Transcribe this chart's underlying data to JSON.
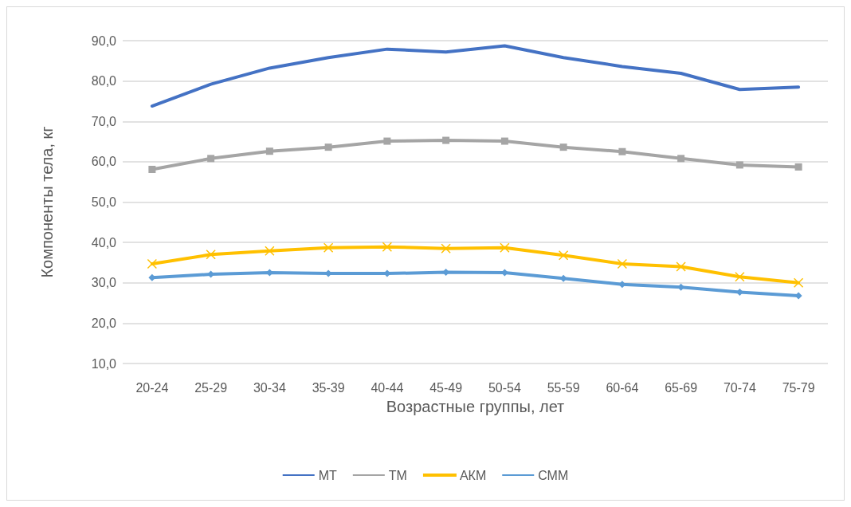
{
  "chart_data": {
    "type": "line",
    "xlabel": "Возрастные группы, лет",
    "ylabel": "Компоненты тела, кг",
    "categories": [
      "20-24",
      "25-29",
      "30-34",
      "35-39",
      "40-44",
      "45-49",
      "50-54",
      "55-59",
      "60-64",
      "65-69",
      "70-74",
      "75-79"
    ],
    "series": [
      {
        "name": "МТ",
        "color": "#4472c4",
        "marker": "none",
        "values": [
          73.8,
          79.2,
          83.2,
          85.8,
          87.9,
          87.2,
          88.7,
          85.8,
          83.6,
          81.9,
          77.9,
          78.5
        ]
      },
      {
        "name": "ТМ",
        "color": "#a5a5a5",
        "marker": "square",
        "values": [
          58.1,
          60.8,
          62.6,
          63.6,
          65.1,
          65.3,
          65.1,
          63.6,
          62.5,
          60.8,
          59.2,
          58.7
        ]
      },
      {
        "name": "АКМ",
        "color": "#ffc000",
        "marker": "cross",
        "values": [
          34.7,
          37.0,
          37.9,
          38.7,
          38.9,
          38.5,
          38.7,
          36.8,
          34.7,
          34.0,
          31.5,
          30.0
        ]
      },
      {
        "name": "СММ",
        "color": "#5b9bd5",
        "marker": "diamond",
        "values": [
          31.3,
          32.1,
          32.5,
          32.3,
          32.3,
          32.6,
          32.5,
          31.1,
          29.6,
          28.9,
          27.7,
          26.8
        ]
      }
    ],
    "ylim": [
      10,
      90
    ],
    "yticks": [
      {
        "value": 10,
        "label": "10,0"
      },
      {
        "value": 20,
        "label": "20,0"
      },
      {
        "value": 30,
        "label": "30,0"
      },
      {
        "value": 40,
        "label": "40,0"
      },
      {
        "value": 50,
        "label": "50,0"
      },
      {
        "value": 60,
        "label": "60,0"
      },
      {
        "value": 70,
        "label": "70,0"
      },
      {
        "value": 80,
        "label": "80,0"
      },
      {
        "value": 90,
        "label": "90,0"
      }
    ],
    "grid": "y",
    "legend": "bottom"
  }
}
